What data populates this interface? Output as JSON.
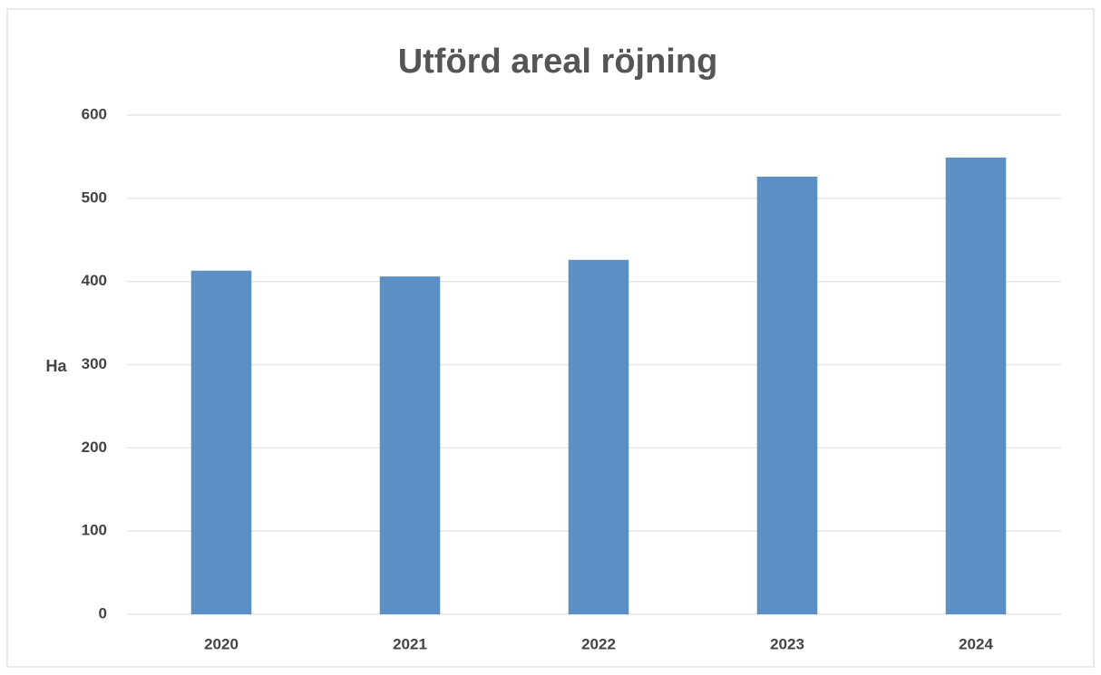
{
  "chart_data": {
    "type": "bar",
    "title": "Utförd areal röjning",
    "ylabel": "Ha",
    "categories": [
      "2020",
      "2021",
      "2022",
      "2023",
      "2024"
    ],
    "values": [
      413,
      406,
      426,
      526,
      549
    ],
    "color": "#5b8fc6",
    "ylim": [
      0,
      600
    ],
    "yticks": [
      0,
      100,
      200,
      300,
      400,
      500,
      600
    ],
    "grid": true
  }
}
